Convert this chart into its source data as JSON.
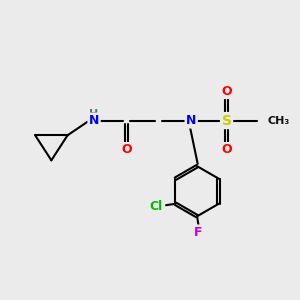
{
  "background_color": "#ebebeb",
  "bond_color": "#000000",
  "bond_width": 1.5,
  "atom_colors": {
    "N": "#0000ff",
    "NH": "#4a7a7a",
    "O": "#ff0000",
    "S": "#cccc00",
    "Cl": "#00bb00",
    "F": "#cc00cc",
    "C": "#000000",
    "H": "#808080"
  },
  "font_size": 9,
  "fig_size": [
    3.0,
    3.0
  ],
  "dpi": 100
}
